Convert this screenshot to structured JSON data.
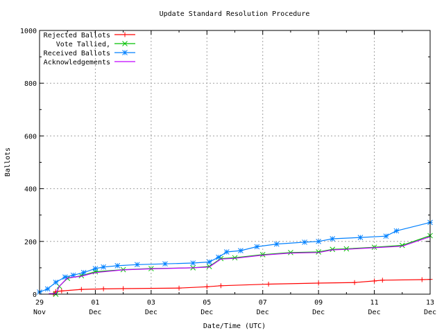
{
  "chart_data": {
    "type": "line",
    "title": "Update Standard Resolution Procedure",
    "xlabel": "Date/Time (UTC)",
    "ylabel": "Ballots",
    "xlim": [
      "Nov 29 00:00",
      "Dec 13 00:00"
    ],
    "ylim": [
      0,
      1000
    ],
    "grid": true,
    "legend_position": "top-left",
    "x_ticks": [
      {
        "day": "29",
        "month": "Nov",
        "at": "Nov 29 00:00"
      },
      {
        "day": "01",
        "month": "Dec",
        "at": "Dec 01 00:00"
      },
      {
        "day": "03",
        "month": "Dec",
        "at": "Dec 03 00:00"
      },
      {
        "day": "05",
        "month": "Dec",
        "at": "Dec 05 00:00"
      },
      {
        "day": "07",
        "month": "Dec",
        "at": "Dec 07 00:00"
      },
      {
        "day": "09",
        "month": "Dec",
        "at": "Dec 09 00:00"
      },
      {
        "day": "11",
        "month": "Dec",
        "at": "Dec 11 00:00"
      },
      {
        "day": "13",
        "month": "Dec",
        "at": "Dec 13 00:00"
      }
    ],
    "y_ticks": [
      0,
      200,
      400,
      600,
      800,
      1000
    ],
    "series": [
      {
        "name": "Rejected Ballots",
        "color": "#ff0000",
        "marker": "plus",
        "points": [
          [
            "Nov 29 12:00",
            0
          ],
          [
            "Nov 29 14:00",
            10
          ],
          [
            "Nov 29 19:00",
            12
          ],
          [
            "Nov 30 12:00",
            18
          ],
          [
            "Dec 01 07:00",
            20
          ],
          [
            "Dec 02 00:00",
            21
          ],
          [
            "Dec 04 00:00",
            23
          ],
          [
            "Dec 05 00:00",
            28
          ],
          [
            "Dec 05 12:00",
            32
          ],
          [
            "Dec 07 05:00",
            38
          ],
          [
            "Dec 09 00:00",
            42
          ],
          [
            "Dec 10 07:00",
            44
          ],
          [
            "Dec 11 00:00",
            50
          ],
          [
            "Dec 11 07:00",
            53
          ],
          [
            "Dec 12 17:00",
            55
          ],
          [
            "Dec 13 00:00",
            56
          ]
        ]
      },
      {
        "name": "Vote Tallied,",
        "color": "#00c000",
        "marker": "x",
        "points": [
          [
            "Nov 29 14:00",
            0
          ],
          [
            "Nov 29 17:00",
            30
          ],
          [
            "Nov 30 00:00",
            60
          ],
          [
            "Nov 30 12:00",
            70
          ],
          [
            "Dec 01 00:00",
            85
          ],
          [
            "Dec 02 00:00",
            93
          ],
          [
            "Dec 03 00:00",
            97
          ],
          [
            "Dec 04 12:00",
            100
          ],
          [
            "Dec 05 02:00",
            105
          ],
          [
            "Dec 05 12:00",
            135
          ],
          [
            "Dec 06 00:00",
            138
          ],
          [
            "Dec 07 00:00",
            150
          ],
          [
            "Dec 08 00:00",
            158
          ],
          [
            "Dec 09 00:00",
            160
          ],
          [
            "Dec 09 12:00",
            170
          ],
          [
            "Dec 10 00:00",
            172
          ],
          [
            "Dec 11 00:00",
            178
          ],
          [
            "Dec 12 00:00",
            185
          ],
          [
            "Dec 13 00:00",
            222
          ]
        ]
      },
      {
        "name": "Received Ballots",
        "color": "#0080ff",
        "marker": "star",
        "points": [
          [
            "Nov 29 00:00",
            8
          ],
          [
            "Nov 29 07:00",
            20
          ],
          [
            "Nov 29 14:00",
            45
          ],
          [
            "Nov 29 22:00",
            65
          ],
          [
            "Nov 30 05:00",
            72
          ],
          [
            "Nov 30 14:00",
            82
          ],
          [
            "Dec 01 00:00",
            97
          ],
          [
            "Dec 01 07:00",
            103
          ],
          [
            "Dec 01 19:00",
            108
          ],
          [
            "Dec 02 12:00",
            112
          ],
          [
            "Dec 03 12:00",
            115
          ],
          [
            "Dec 04 12:00",
            118
          ],
          [
            "Dec 05 02:00",
            122
          ],
          [
            "Dec 05 10:00",
            140
          ],
          [
            "Dec 05 17:00",
            160
          ],
          [
            "Dec 06 05:00",
            165
          ],
          [
            "Dec 06 19:00",
            180
          ],
          [
            "Dec 07 12:00",
            190
          ],
          [
            "Dec 08 12:00",
            197
          ],
          [
            "Dec 09 00:00",
            200
          ],
          [
            "Dec 09 12:00",
            210
          ],
          [
            "Dec 10 12:00",
            215
          ],
          [
            "Dec 11 10:00",
            220
          ],
          [
            "Dec 11 19:00",
            240
          ],
          [
            "Dec 13 00:00",
            272
          ]
        ]
      },
      {
        "name": "Acknowledgements",
        "color": "#c000ff",
        "marker": "none",
        "points": [
          [
            "Nov 29 08:00",
            2
          ],
          [
            "Nov 29 14:00",
            2
          ],
          [
            "Nov 29 17:00",
            30
          ],
          [
            "Nov 30 00:00",
            62
          ],
          [
            "Nov 30 12:00",
            68
          ],
          [
            "Dec 01 00:00",
            82
          ],
          [
            "Dec 02 00:00",
            92
          ],
          [
            "Dec 03 00:00",
            96
          ],
          [
            "Dec 04 12:00",
            100
          ],
          [
            "Dec 05 02:00",
            103
          ],
          [
            "Dec 05 12:00",
            133
          ],
          [
            "Dec 06 00:00",
            136
          ],
          [
            "Dec 07 00:00",
            148
          ],
          [
            "Dec 08 00:00",
            156
          ],
          [
            "Dec 09 00:00",
            158
          ],
          [
            "Dec 09 12:00",
            168
          ],
          [
            "Dec 10 00:00",
            170
          ],
          [
            "Dec 11 00:00",
            176
          ],
          [
            "Dec 12 00:00",
            182
          ],
          [
            "Dec 13 00:00",
            218
          ]
        ]
      }
    ]
  }
}
